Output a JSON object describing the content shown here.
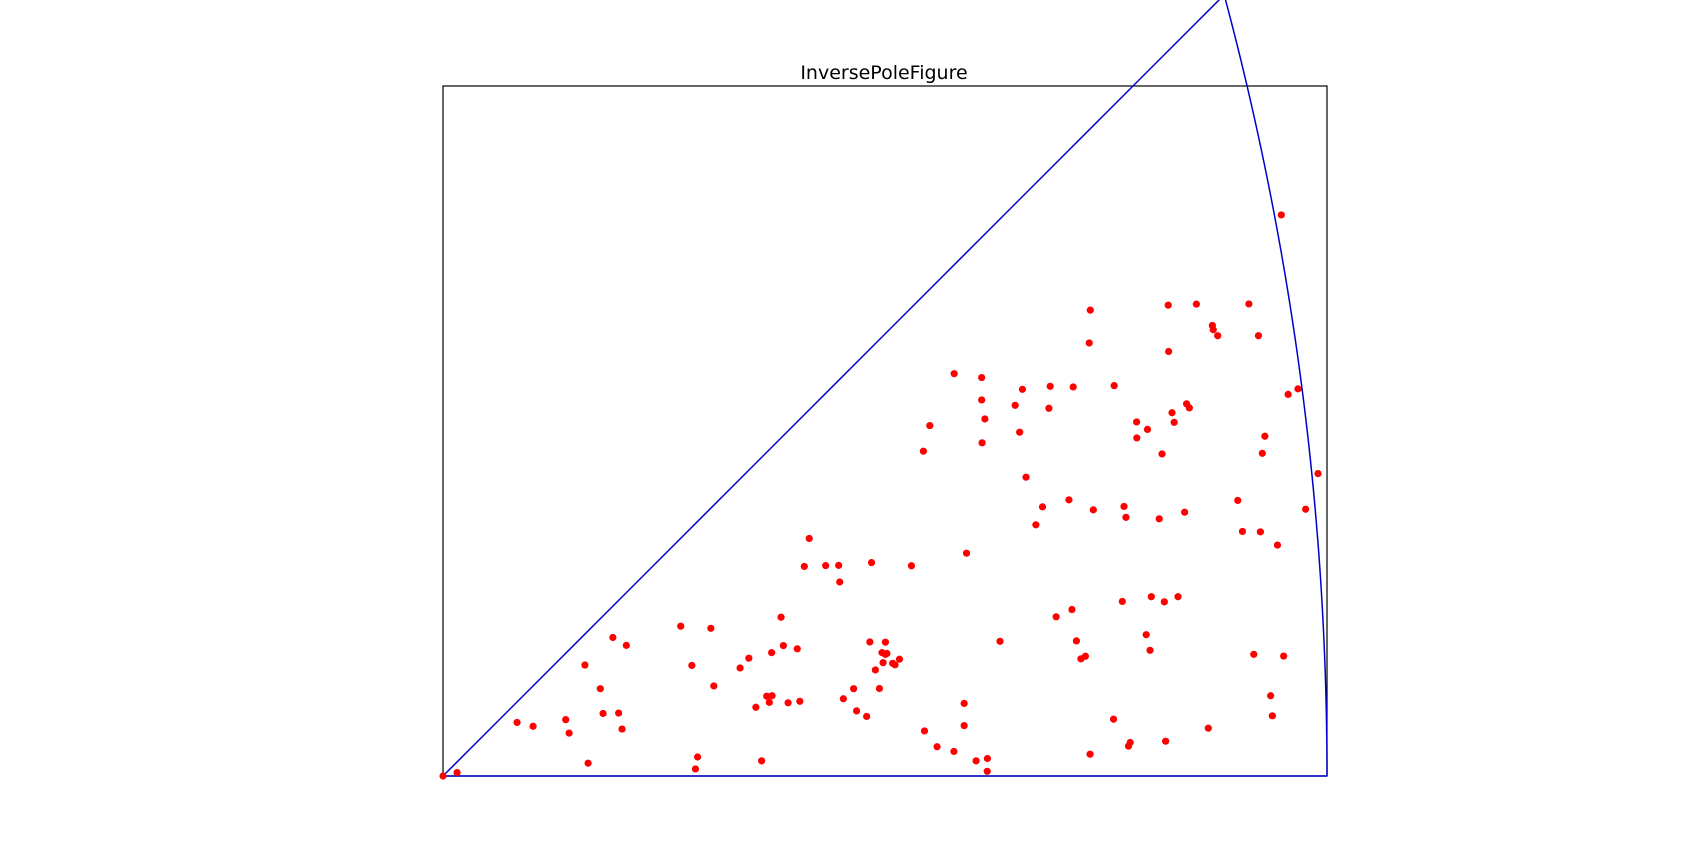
{
  "chart_data": {
    "type": "scatter",
    "title": "InversePoleFigure",
    "xlim": [
      0,
      0.41421
    ],
    "ylim": [
      0,
      0.32304
    ],
    "grid": false,
    "legend": "none",
    "boundary": {
      "description": "stereographic standard triangle [001]-[101]-[111]",
      "vertex_001": [
        0,
        0
      ],
      "vertex_101": [
        0.41421,
        0
      ],
      "vertex_111": [
        0.36603,
        0.36603
      ]
    },
    "colors": {
      "points": "#ff0000",
      "boundary": "#0000cc",
      "frame": "#000000"
    },
    "x": [
      0.0,
      0.0066,
      0.0347,
      0.0422,
      0.0575,
      0.0591,
      0.068,
      0.075,
      0.0737,
      0.0665,
      0.0796,
      0.0823,
      0.0839,
      0.0859,
      0.1114,
      0.1166,
      0.1183,
      0.1193,
      0.1269,
      0.1255,
      0.1392,
      0.1433,
      0.1493,
      0.1466,
      0.1517,
      0.1542,
      0.154,
      0.1529,
      0.1584,
      0.1595,
      0.166,
      0.1672,
      0.1617,
      0.1693,
      0.1716,
      0.1793,
      0.1854,
      0.1859,
      0.1876,
      0.1924,
      0.1938,
      0.1985,
      0.2,
      0.2057,
      0.2062,
      0.2073,
      0.208,
      0.2073,
      0.2026,
      0.2045,
      0.2008,
      0.2107,
      0.2118,
      0.2139,
      0.2195,
      0.2251,
      0.2256,
      0.2281,
      0.2315,
      0.2395,
      0.2394,
      0.2442,
      0.2442,
      0.2453,
      0.2524,
      0.2539,
      0.2498,
      0.255,
      0.2551,
      0.2526,
      0.261,
      0.2524,
      0.2681,
      0.2702,
      0.2715,
      0.2732,
      0.2809,
      0.2778,
      0.2839,
      0.2845,
      0.2947,
      0.2968,
      0.2933,
      0.2953,
      0.2873,
      0.2989,
      0.3032,
      0.3033,
      0.3047,
      0.301,
      0.3028,
      0.3145,
      0.3183,
      0.3191,
      0.3142,
      0.3212,
      0.322,
      0.32,
      0.3251,
      0.3301,
      0.3295,
      0.325,
      0.3313,
      0.3369,
      0.3356,
      0.3319,
      0.338,
      0.34,
      0.3444,
      0.3426,
      0.3416,
      0.3398,
      0.3497,
      0.3386,
      0.3475,
      0.3484,
      0.3586,
      0.353,
      0.363,
      0.3609,
      0.3605,
      0.3724,
      0.3821,
      0.3776,
      0.3799,
      0.3746,
      0.383,
      0.3851,
      0.3839,
      0.3878,
      0.3886,
      0.391,
      0.396,
      0.3939,
      0.4042,
      0.4006,
      0.41,
      0.3928
    ],
    "y": [
      0.0,
      0.0016,
      0.0251,
      0.0233,
      0.0264,
      0.0201,
      0.006,
      0.0293,
      0.0409,
      0.052,
      0.0649,
      0.0295,
      0.022,
      0.0612,
      0.0702,
      0.0518,
      0.0033,
      0.0089,
      0.0422,
      0.0692,
      0.0506,
      0.0552,
      0.0071,
      0.0322,
      0.0374,
      0.0376,
      0.0578,
      0.0345,
      0.0744,
      0.0611,
      0.0596,
      0.035,
      0.0343,
      0.0982,
      0.1113,
      0.0986,
      0.0987,
      0.0909,
      0.0362,
      0.0409,
      0.0305,
      0.0279,
      0.0628,
      0.0578,
      0.0531,
      0.0627,
      0.0574,
      0.057,
      0.0497,
      0.041,
      0.1,
      0.0528,
      0.0521,
      0.0547,
      0.0985,
      0.1522,
      0.0211,
      0.1642,
      0.0137,
      0.1885,
      0.0115,
      0.0236,
      0.034,
      0.1044,
      0.1762,
      0.1673,
      0.0071,
      0.0022,
      0.0082,
      0.1561,
      0.0631,
      0.1867,
      0.1737,
      0.1611,
      0.1812,
      0.14,
      0.1261,
      0.1177,
      0.1723,
      0.1826,
      0.078,
      0.0633,
      0.1294,
      0.1823,
      0.0746,
      0.0549,
      0.0102,
      0.2183,
      0.1247,
      0.0561,
      0.2029,
      0.1829,
      0.0818,
      0.1263,
      0.0266,
      0.014,
      0.0157,
      0.1212,
      0.1584,
      0.1624,
      0.0662,
      0.1659,
      0.0589,
      0.1509,
      0.1205,
      0.084,
      0.0816,
      0.1989,
      0.084,
      0.1657,
      0.1702,
      0.2206,
      0.1725,
      0.0163,
      0.1236,
      0.1744,
      0.0224,
      0.2211,
      0.2063,
      0.2091,
      0.2111,
      0.1291,
      0.2063,
      0.2212,
      0.057,
      0.1146,
      0.1144,
      0.1592,
      0.1512,
      0.0376,
      0.0282,
      0.1082,
      0.1788,
      0.0562,
      0.125,
      0.1814,
      0.1417,
      0.2629
    ]
  }
}
